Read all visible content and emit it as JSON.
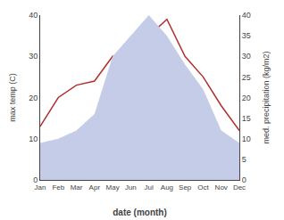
{
  "chart_data": {
    "type": "line",
    "xlabel": "date (month)",
    "ylabel": "max temp (C)",
    "y2label": "med. precipitation (kg/m2)",
    "categories": [
      "Jan",
      "Feb",
      "Mar",
      "Apr",
      "May",
      "Jun",
      "Jul",
      "Aug",
      "Sep",
      "Oct",
      "Nov",
      "Dec"
    ],
    "series": [
      {
        "type": "area",
        "color": "#c5cce8",
        "axis": "y2",
        "values": [
          9,
          10,
          12,
          16,
          30,
          35,
          40,
          35,
          28,
          22,
          12,
          9
        ]
      },
      {
        "type": "line",
        "color": "#b03030",
        "values": [
          13,
          20,
          23,
          24,
          30,
          31,
          35,
          39,
          30,
          25,
          18,
          12
        ]
      }
    ],
    "ylim": [
      0,
      40
    ],
    "yticks": [
      0,
      10,
      20,
      30,
      40
    ],
    "y2lim": [
      0,
      40
    ],
    "y2ticks": [
      0,
      5,
      10,
      15,
      20,
      25,
      30,
      35,
      40
    ],
    "grid": false
  }
}
